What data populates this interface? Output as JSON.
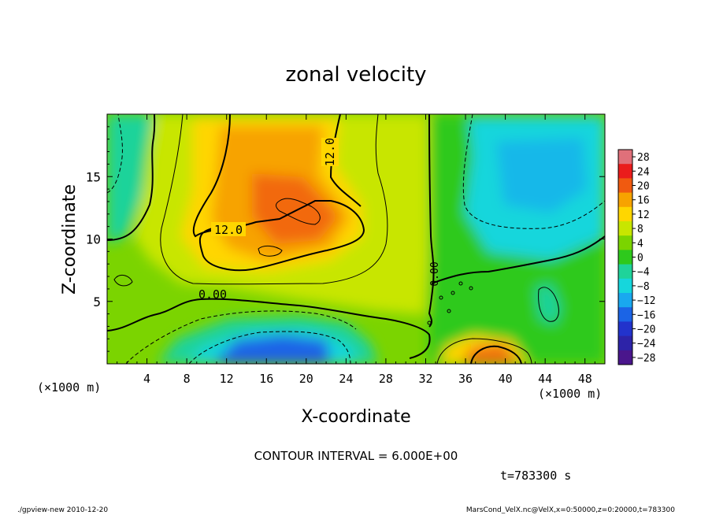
{
  "chart_data": {
    "type": "heatmap",
    "title": "zonal velocity",
    "xlabel": "X-coordinate",
    "ylabel": "Z-coordinate",
    "x_unit_left": "(×1000 m)",
    "x_unit_right": "(×1000 m)",
    "xlim": [
      0,
      50
    ],
    "ylim": [
      0,
      20
    ],
    "x_ticks": [
      4,
      8,
      12,
      16,
      20,
      24,
      28,
      32,
      36,
      40,
      44,
      48
    ],
    "y_ticks": [
      5,
      10,
      15
    ],
    "colorbar": {
      "levels": [
        28,
        24,
        20,
        16,
        12,
        8,
        4,
        0,
        -4,
        -8,
        -12,
        -16,
        -20,
        -24,
        -28
      ],
      "level_labels": [
        "28",
        "24",
        "20",
        "16",
        "12",
        "8",
        "4",
        "0",
        "−4",
        "−8",
        "−12",
        "−16",
        "−20",
        "−24",
        "−28"
      ],
      "colors": [
        "#e0707a",
        "#ea1c1c",
        "#f05a10",
        "#f7a300",
        "#ffd600",
        "#c8e600",
        "#7bd400",
        "#2ec91c",
        "#1fd39a",
        "#16d6dc",
        "#19a8ef",
        "#1b64e6",
        "#2233cc",
        "#2d23a8",
        "#4a168c"
      ]
    },
    "contour_labels": [
      "12.0",
      "12.0",
      "0.00",
      "0.00"
    ],
    "contour_interval_text": "CONTOUR INTERVAL = 6.000E+00",
    "time_text": "t=783300 s",
    "features": [
      {
        "name": "positive jet core",
        "x": 19,
        "z": 12,
        "value": 18
      },
      {
        "name": "secondary maximum",
        "x": 16,
        "z": 9,
        "value": 16
      },
      {
        "name": "near-surface minimum",
        "x": 17,
        "z": 1.5,
        "value": -18
      },
      {
        "name": "surface maximum",
        "x": 40,
        "z": 1,
        "value": 16
      },
      {
        "name": "upper-right minimum",
        "x": 45,
        "z": 15,
        "value": -10
      }
    ]
  },
  "footer": {
    "left": "./gpview-new   2010-12-20",
    "right": "MarsCond_VelX.nc@VelX,x=0:50000,z=0:20000,t=783300"
  }
}
